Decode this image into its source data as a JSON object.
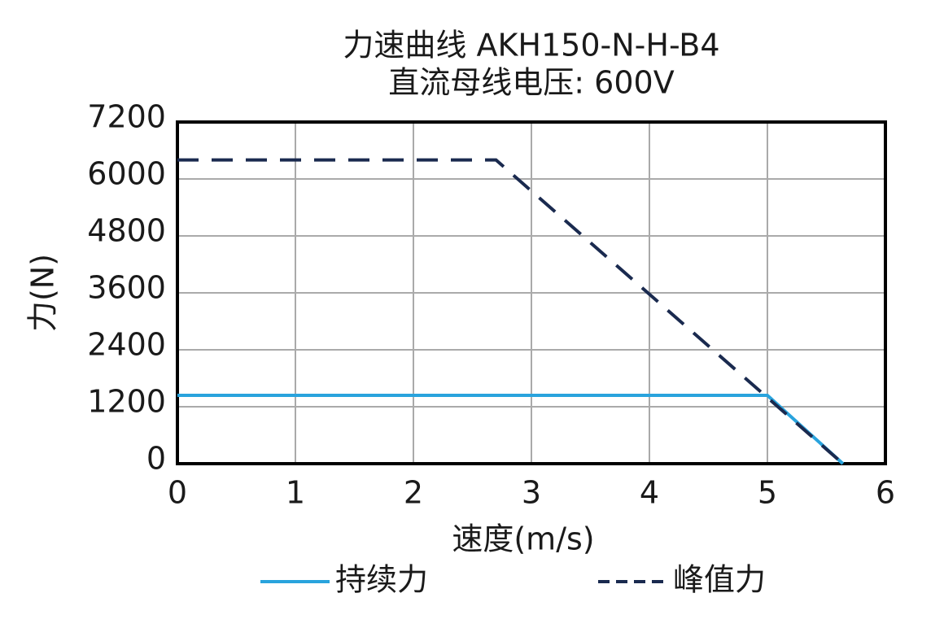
{
  "chart_data": {
    "type": "line",
    "title": "力速曲线 AKH150-N-H-B4",
    "subtitle": "直流母线电压: 600V",
    "x_label": "速度(m/s)",
    "y_label": "力(N)",
    "xlim": [
      0,
      6
    ],
    "xticks": [
      0,
      1,
      2,
      3,
      4,
      5,
      6
    ],
    "ylim": [
      0,
      7200
    ],
    "yticks": [
      0,
      1200,
      2400,
      3600,
      4800,
      6000,
      7200
    ],
    "grid": true,
    "legend": "bottom",
    "series": [
      {
        "name": "持续力",
        "color": "#29a3dd",
        "style": "solid",
        "x": [
          0,
          5,
          5.64
        ],
        "values": [
          1440,
          1440,
          0
        ]
      },
      {
        "name": "峰值力",
        "color": "#1a2a4f",
        "style": "dashed",
        "x": [
          0,
          2.7,
          5.64
        ],
        "values": [
          6400,
          6400,
          0
        ]
      }
    ]
  }
}
